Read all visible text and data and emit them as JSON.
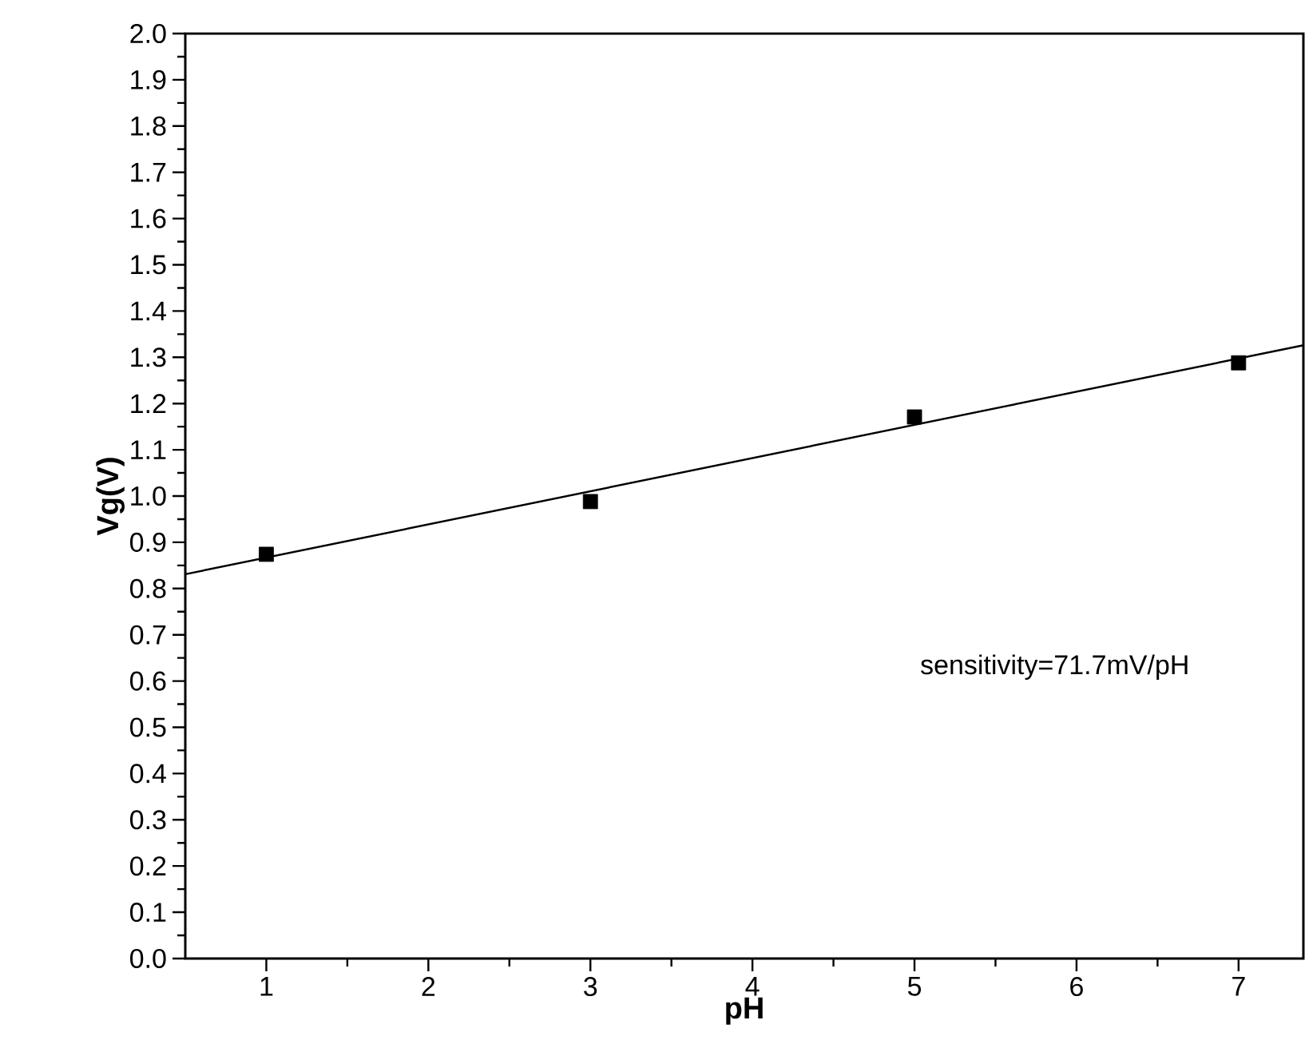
{
  "chart_data": {
    "type": "scatter",
    "xlabel": "pH",
    "ylabel": "Vg(V)",
    "xlim": [
      0.5,
      7.4
    ],
    "ylim": [
      0,
      2
    ],
    "xticks": [
      1,
      2,
      3,
      4,
      5,
      6,
      7
    ],
    "yticks": [
      {
        "value": 0,
        "label": "0.0"
      },
      {
        "value": 0.1,
        "label": "0.1"
      },
      {
        "value": 0.2,
        "label": "0.2"
      },
      {
        "value": 0.3,
        "label": "0.3"
      },
      {
        "value": 0.4,
        "label": "0.4"
      },
      {
        "value": 0.5,
        "label": "0.5"
      },
      {
        "value": 0.6,
        "label": "0.6"
      },
      {
        "value": 0.7,
        "label": "0.7"
      },
      {
        "value": 0.8,
        "label": "0.8"
      },
      {
        "value": 0.9,
        "label": "0.9"
      },
      {
        "value": 1,
        "label": "1.0"
      },
      {
        "value": 1.1,
        "label": "1.1"
      },
      {
        "value": 1.2,
        "label": "1.2"
      },
      {
        "value": 1.3,
        "label": "1.3"
      },
      {
        "value": 1.4,
        "label": "1.4"
      },
      {
        "value": 1.5,
        "label": "1.5"
      },
      {
        "value": 1.6,
        "label": "1.6"
      },
      {
        "value": 1.7,
        "label": "1.7"
      },
      {
        "value": 1.8,
        "label": "1.8"
      },
      {
        "value": 1.9,
        "label": "1.9"
      },
      {
        "value": 2,
        "label": "2.0"
      }
    ],
    "series": [
      {
        "color": "#000000",
        "marker": "square",
        "x": [
          1,
          3,
          5,
          7
        ],
        "values": [
          0.874,
          0.988,
          1.171,
          1.288
        ]
      },
      {
        "type": "line",
        "color": "#000000",
        "line_style": "solid",
        "x": [
          0.5,
          7.4
        ],
        "values": [
          0.831,
          1.326
        ]
      }
    ],
    "annotations": [
      "sensitivity=71.7mV/pH"
    ]
  }
}
